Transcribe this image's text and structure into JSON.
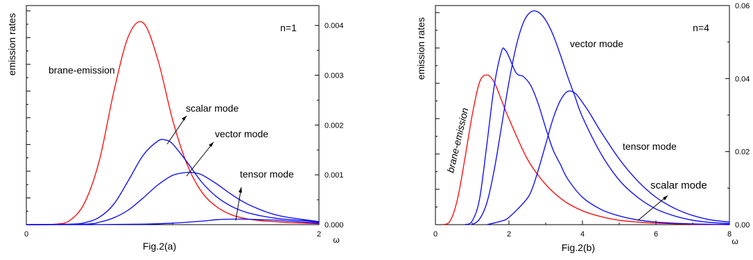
{
  "figures": [
    {
      "caption": "Fig.2(a)",
      "xlabel": "ω",
      "ylabel": "emission rates",
      "annotation": "n=1",
      "curve_labels": [
        {
          "text": "brane-emission"
        },
        {
          "text": "scalar mode"
        },
        {
          "text": "vector mode"
        },
        {
          "text": "tensor mode"
        }
      ]
    },
    {
      "caption": "Fig.2(b)",
      "xlabel": "ω",
      "ylabel": "emission rates",
      "annotation": "n=4",
      "curve_labels": [
        {
          "text": "brane-emission"
        },
        {
          "text": "vector mode"
        },
        {
          "text": "tensor mode"
        },
        {
          "text": "scalar mode"
        }
      ]
    }
  ],
  "chart_data": [
    {
      "type": "line",
      "title": "",
      "xlabel": "ω",
      "ylabel": "emission rates",
      "xlim": [
        0,
        2
      ],
      "x_ticks": [
        "0",
        "2"
      ],
      "y2lim": [
        0,
        0.0044
      ],
      "y2_ticks": [
        "0.000",
        "0.001",
        "0.002",
        "0.003",
        "0.004"
      ],
      "colors": {
        "brane": "#ff0000",
        "bulk": "#0000ff"
      },
      "series": [
        {
          "name": "brane-emission",
          "color": "#ff0000",
          "x": [
            0,
            0.2,
            0.3,
            0.4,
            0.5,
            0.6,
            0.7,
            0.8,
            0.9,
            1.0,
            1.1,
            1.2,
            1.3,
            1.4,
            1.5,
            1.6,
            1.7,
            1.8,
            1.9,
            2.0
          ],
          "y": [
            0,
            1e-05,
            9e-05,
            0.00045,
            0.0013,
            0.0027,
            0.0038,
            0.00405,
            0.0033,
            0.0021,
            0.0012,
            0.00065,
            0.00036,
            0.0002,
            0.00012,
            8e-05,
            6e-05,
            4e-05,
            3e-05,
            2e-05
          ]
        },
        {
          "name": "scalar mode",
          "color": "#0000ff",
          "x": [
            0,
            0.3,
            0.4,
            0.5,
            0.6,
            0.7,
            0.8,
            0.9,
            0.95,
            1.0,
            1.1,
            1.2,
            1.3,
            1.4,
            1.5,
            1.6,
            1.7,
            1.8,
            1.9,
            2.0
          ],
          "y": [
            0,
            1e-05,
            4e-05,
            0.00015,
            0.00042,
            0.0009,
            0.0014,
            0.00168,
            0.0017,
            0.00162,
            0.00125,
            0.00085,
            0.00056,
            0.00037,
            0.00025,
            0.00018,
            0.00013,
            0.0001,
            8e-05,
            5e-05
          ]
        },
        {
          "name": "vector mode",
          "color": "#0000ff",
          "x": [
            0,
            0.4,
            0.5,
            0.6,
            0.7,
            0.8,
            0.9,
            1.0,
            1.1,
            1.15,
            1.2,
            1.3,
            1.4,
            1.5,
            1.6,
            1.7,
            1.8,
            1.9,
            2.0
          ],
          "y": [
            0,
            1e-05,
            5e-05,
            0.00014,
            0.0003,
            0.00054,
            0.0008,
            0.00099,
            0.00105,
            0.00104,
            0.001,
            0.00082,
            0.00061,
            0.00043,
            0.0003,
            0.0002,
            0.00014,
            0.0001,
            6e-05
          ]
        },
        {
          "name": "tensor mode",
          "color": "#0000ff",
          "x": [
            0,
            0.5,
            0.8,
            1.0,
            1.2,
            1.3,
            1.4,
            1.5,
            1.6,
            1.7,
            1.8,
            1.9,
            2.0
          ],
          "y": [
            0,
            1e-06,
            1e-05,
            3e-05,
            7e-05,
            0.0001,
            0.00011,
            0.00011,
            0.0001,
            9e-05,
            7e-05,
            5e-05,
            3e-05
          ]
        }
      ]
    },
    {
      "type": "line",
      "title": "",
      "xlabel": "ω",
      "ylabel": "emission rates",
      "xlim": [
        0,
        8
      ],
      "x_ticks": [
        "0",
        "2",
        "4",
        "6",
        "8"
      ],
      "y2lim": [
        0,
        0.06
      ],
      "y2_ticks": [
        "0.00",
        "0.02",
        "0.04",
        "0.06"
      ],
      "colors": {
        "brane": "#ff0000",
        "bulk": "#0000ff"
      },
      "series": [
        {
          "name": "brane-emission",
          "color": "#ff0000",
          "x": [
            0.2,
            0.4,
            0.6,
            0.8,
            1.0,
            1.2,
            1.4,
            1.6,
            1.8,
            2.0,
            2.5,
            3.0,
            3.5,
            4.0,
            4.5,
            5.0,
            5.5,
            6.0,
            7.0,
            8.0
          ],
          "y": [
            0,
            0.001,
            0.007,
            0.018,
            0.03,
            0.039,
            0.041,
            0.039,
            0.034,
            0.029,
            0.018,
            0.011,
            0.0065,
            0.0038,
            0.0022,
            0.0012,
            0.0007,
            0.0004,
            0.0001,
            0
          ]
        },
        {
          "name": "vector mode",
          "color": "#0000ff",
          "x": [
            0.8,
            1.0,
            1.2,
            1.4,
            1.6,
            1.8,
            1.9,
            2.0,
            2.2,
            2.4,
            2.6,
            2.8,
            3.0,
            3.2,
            3.4,
            3.6,
            4.0,
            4.5,
            5.0,
            5.5,
            6.0,
            6.5,
            7.0,
            7.5,
            8.0
          ],
          "y": [
            0,
            0.001,
            0.007,
            0.022,
            0.038,
            0.0475,
            0.0478,
            0.046,
            0.0415,
            0.0405,
            0.038,
            0.033,
            0.0265,
            0.0205,
            0.0165,
            0.0125,
            0.0075,
            0.0042,
            0.0024,
            0.0013,
            0.0007,
            0.0004,
            0.0002,
            0.0001,
            5e-05
          ]
        },
        {
          "name": "tensor mode",
          "color": "#0000ff",
          "x": [
            1.0,
            1.2,
            1.4,
            1.6,
            1.8,
            2.0,
            2.2,
            2.4,
            2.6,
            2.8,
            3.0,
            3.2,
            3.4,
            3.6,
            3.8,
            4.0,
            4.5,
            5.0,
            5.5,
            6.0,
            6.5,
            7.0,
            7.5,
            8.0
          ],
          "y": [
            0,
            0.0015,
            0.006,
            0.015,
            0.027,
            0.039,
            0.049,
            0.0555,
            0.0583,
            0.0582,
            0.056,
            0.052,
            0.0465,
            0.0405,
            0.035,
            0.0295,
            0.0195,
            0.0122,
            0.0075,
            0.0043,
            0.0024,
            0.0012,
            0.0006,
            0.0003
          ]
        },
        {
          "name": "scalar mode",
          "color": "#0000ff",
          "x": [
            1.4,
            1.8,
            2.0,
            2.4,
            2.6,
            2.8,
            3.0,
            3.2,
            3.4,
            3.6,
            3.8,
            4.0,
            4.2,
            4.5,
            5.0,
            5.5,
            6.0,
            6.5,
            7.0,
            7.5,
            8.0
          ],
          "y": [
            0,
            0.001,
            0.002,
            0.006,
            0.009,
            0.015,
            0.022,
            0.029,
            0.034,
            0.0365,
            0.036,
            0.0335,
            0.0305,
            0.0255,
            0.018,
            0.012,
            0.0075,
            0.0045,
            0.0025,
            0.0013,
            0.0007
          ]
        }
      ]
    }
  ]
}
